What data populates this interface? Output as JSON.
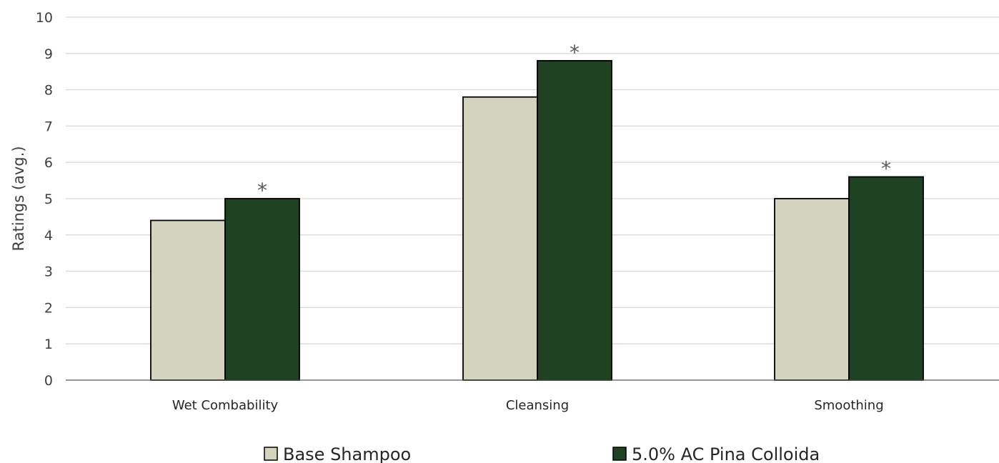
{
  "chart_data": {
    "type": "bar",
    "title": "",
    "xlabel": "",
    "ylabel": "Ratings (avg.)",
    "ylim": [
      0,
      10
    ],
    "yticks": [
      0,
      1,
      2,
      3,
      4,
      5,
      6,
      7,
      8,
      9,
      10
    ],
    "grid": true,
    "legend_position": "bottom",
    "categories": [
      "Wet Combability",
      "Cleansing",
      "Smoothing"
    ],
    "series": [
      {
        "name": "Base Shampoo",
        "values": [
          4.4,
          7.8,
          5.0
        ],
        "color": "#d3d3be"
      },
      {
        "name": "5.0% AC Pina Colloida",
        "values": [
          5.0,
          8.8,
          5.6
        ],
        "color": "#1f4322"
      }
    ],
    "annotations": [
      "*",
      "*",
      "*"
    ]
  }
}
